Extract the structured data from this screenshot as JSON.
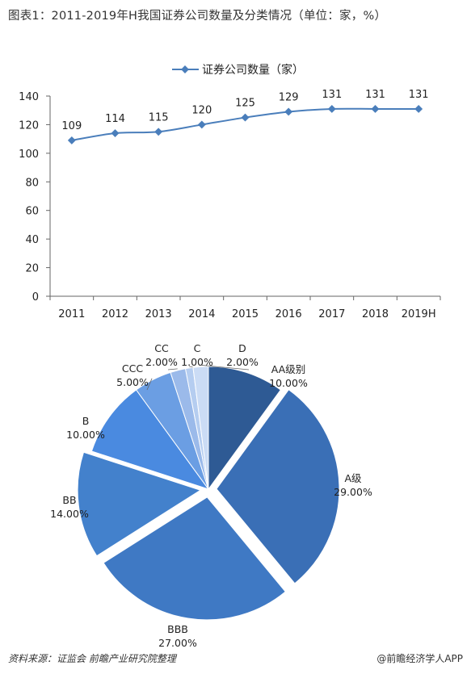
{
  "header": {
    "title": "图表1：2011-2019年H我国证券公司数量及分类情况（单位：家，%）"
  },
  "footer": {
    "source": "资料来源：证监会 前瞻产业研究院整理",
    "brand": "@前瞻经济学人APP"
  },
  "colors": {
    "line": "#4a7ebb",
    "axis": "#666666",
    "pie": [
      "#2e5a94",
      "#3a6fb6",
      "#3f79c4",
      "#4381cc",
      "#4a8ae0",
      "#6b9ee3",
      "#9bbaea",
      "#b5cdf0",
      "#cbdcf5"
    ]
  },
  "chart_data": [
    {
      "type": "line",
      "title": "",
      "legend": [
        "证券公司数量（家）"
      ],
      "legend_position": "top",
      "categories": [
        "2011",
        "2012",
        "2013",
        "2014",
        "2015",
        "2016",
        "2017",
        "2018",
        "2019H"
      ],
      "series": [
        {
          "name": "证券公司数量（家）",
          "values": [
            109,
            114,
            115,
            120,
            125,
            129,
            131,
            131,
            131
          ]
        }
      ],
      "yticks": [
        "0",
        "20",
        "40",
        "60",
        "80",
        "100",
        "120",
        "140"
      ],
      "ylim": [
        0,
        140
      ],
      "grid": false,
      "data_labels": true
    },
    {
      "type": "pie",
      "slices": [
        {
          "label": "AA级别",
          "value": 10.0,
          "value_label": "10.00%"
        },
        {
          "label": "A级",
          "value": 29.0,
          "value_label": "29.00%"
        },
        {
          "label": "BBB",
          "value": 27.0,
          "value_label": "27.00%"
        },
        {
          "label": "BB",
          "value": 14.0,
          "value_label": "14.00%"
        },
        {
          "label": "B",
          "value": 10.0,
          "value_label": "10.00%"
        },
        {
          "label": "CCC",
          "value": 5.0,
          "value_label": "5.00%"
        },
        {
          "label": "CC",
          "value": 2.0,
          "value_label": "2.00%"
        },
        {
          "label": "C",
          "value": 1.0,
          "value_label": "1.00%"
        },
        {
          "label": "D",
          "value": 2.0,
          "value_label": "2.00%"
        }
      ]
    }
  ]
}
